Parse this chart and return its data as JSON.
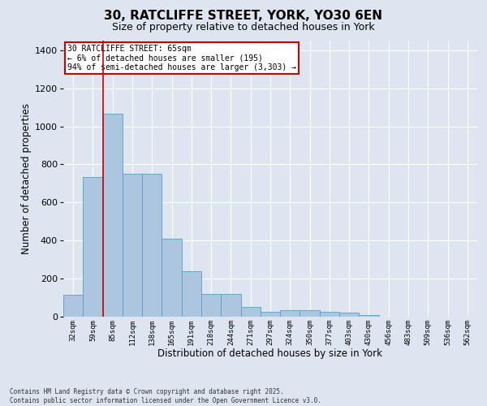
{
  "title1": "30, RATCLIFFE STREET, YORK, YO30 6EN",
  "title2": "Size of property relative to detached houses in York",
  "xlabel": "Distribution of detached houses by size in York",
  "ylabel": "Number of detached properties",
  "annotation_title": "30 RATCLIFFE STREET: 65sqm",
  "annotation_line2": "← 6% of detached houses are smaller (195)",
  "annotation_line3": "94% of semi-detached houses are larger (3,303) →",
  "footer1": "Contains HM Land Registry data © Crown copyright and database right 2025.",
  "footer2": "Contains public sector information licensed under the Open Government Licence v3.0.",
  "categories": [
    "32sqm",
    "59sqm",
    "85sqm",
    "112sqm",
    "138sqm",
    "165sqm",
    "191sqm",
    "218sqm",
    "244sqm",
    "271sqm",
    "297sqm",
    "324sqm",
    "350sqm",
    "377sqm",
    "403sqm",
    "430sqm",
    "456sqm",
    "483sqm",
    "509sqm",
    "536sqm",
    "562sqm"
  ],
  "values": [
    115,
    735,
    1065,
    750,
    750,
    408,
    237,
    120,
    120,
    50,
    25,
    32,
    32,
    25,
    20,
    10,
    0,
    0,
    0,
    0,
    0
  ],
  "bar_color": "#adc6e0",
  "bar_edge_color": "#5a9ec9",
  "marker_color": "#cc0000",
  "background_color": "#dde6f0",
  "plot_background": "#dde6f0",
  "ylim": [
    0,
    1450
  ],
  "yticks": [
    0,
    200,
    400,
    600,
    800,
    1000,
    1200,
    1400
  ],
  "annotation_box_color": "#cc0000",
  "title_fontsize": 11,
  "subtitle_fontsize": 9
}
